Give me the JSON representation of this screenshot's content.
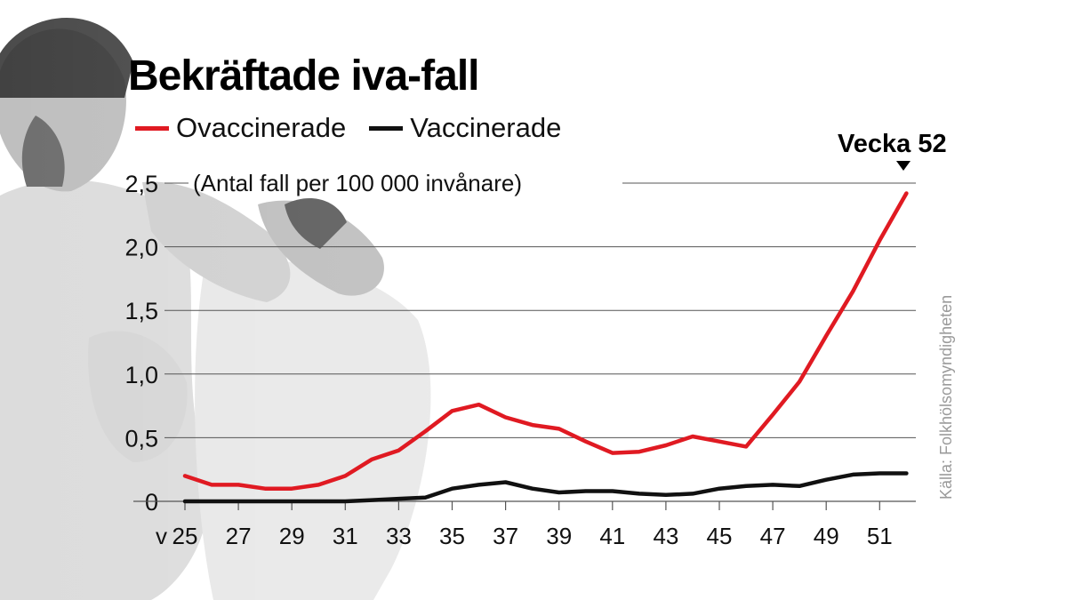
{
  "title": "Bekräftade iva-fall",
  "legend": {
    "unvaccinated_label": "Ovaccinerade",
    "vaccinated_label": "Vaccinerade"
  },
  "annotation": "Vecka 52",
  "source": "Källa: Folkhölsomyndigheten",
  "colors": {
    "unvaccinated": "#e01a22",
    "vaccinated": "#111111"
  },
  "chart_data": {
    "type": "line",
    "title": "Bekräftade iva-fall",
    "ylabel": "(Antal fall per 100 000 invånare)",
    "x_prefix": "v",
    "x_ticks": [
      25,
      27,
      29,
      31,
      33,
      35,
      37,
      39,
      41,
      43,
      45,
      47,
      49,
      51
    ],
    "y_ticks": [
      "0",
      "0,5",
      "1,0",
      "1,5",
      "2,0",
      "2,5"
    ],
    "ylim": [
      0,
      2.5
    ],
    "x": [
      25,
      26,
      27,
      28,
      29,
      30,
      31,
      32,
      33,
      34,
      35,
      36,
      37,
      38,
      39,
      40,
      41,
      42,
      43,
      44,
      45,
      46,
      47,
      48,
      49,
      50,
      51,
      52
    ],
    "series": [
      {
        "name": "Ovaccinerade",
        "values": [
          0.2,
          0.13,
          0.13,
          0.1,
          0.1,
          0.13,
          0.2,
          0.33,
          0.4,
          0.55,
          0.71,
          0.76,
          0.66,
          0.6,
          0.57,
          0.47,
          0.38,
          0.39,
          0.44,
          0.51,
          0.47,
          0.43,
          0.68,
          0.94,
          1.3,
          1.65,
          2.05,
          2.42
        ]
      },
      {
        "name": "Vaccinerade",
        "values": [
          0,
          0,
          0,
          0,
          0,
          0,
          0,
          0.01,
          0.02,
          0.03,
          0.1,
          0.13,
          0.15,
          0.1,
          0.07,
          0.08,
          0.08,
          0.06,
          0.05,
          0.06,
          0.1,
          0.12,
          0.13,
          0.12,
          0.17,
          0.21,
          0.22,
          0.22
        ]
      }
    ],
    "grid": true,
    "legend_position": "top-left"
  }
}
